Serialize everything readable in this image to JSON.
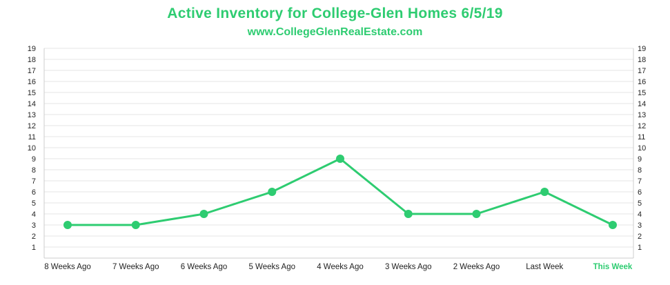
{
  "chart_data": {
    "type": "line",
    "title": "Active Inventory for College-Glen Homes 6/5/19",
    "subtitle": "www.CollegeGlenRealEstate.com",
    "categories": [
      "8 Weeks Ago",
      "7 Weeks Ago",
      "6 Weeks Ago",
      "5 Weeks Ago",
      "4 Weeks Ago",
      "3 Weeks Ago",
      "2 Weeks Ago",
      "Last Week",
      "This Week"
    ],
    "highlight_category": "This Week",
    "series": [
      {
        "values": [
          3,
          3,
          4,
          6,
          9,
          4,
          4,
          6,
          3
        ]
      }
    ],
    "yticks": [
      1,
      2,
      3,
      4,
      5,
      6,
      7,
      8,
      9,
      10,
      11,
      12,
      13,
      14,
      15,
      16,
      17,
      18,
      19
    ],
    "ylim": [
      0,
      19
    ],
    "grid": true,
    "dual_y_axis": true,
    "colors": {
      "line": "#2ecc71",
      "grid": "#e6e6e6",
      "text": "#222222",
      "highlight": "#2ecc71"
    }
  }
}
